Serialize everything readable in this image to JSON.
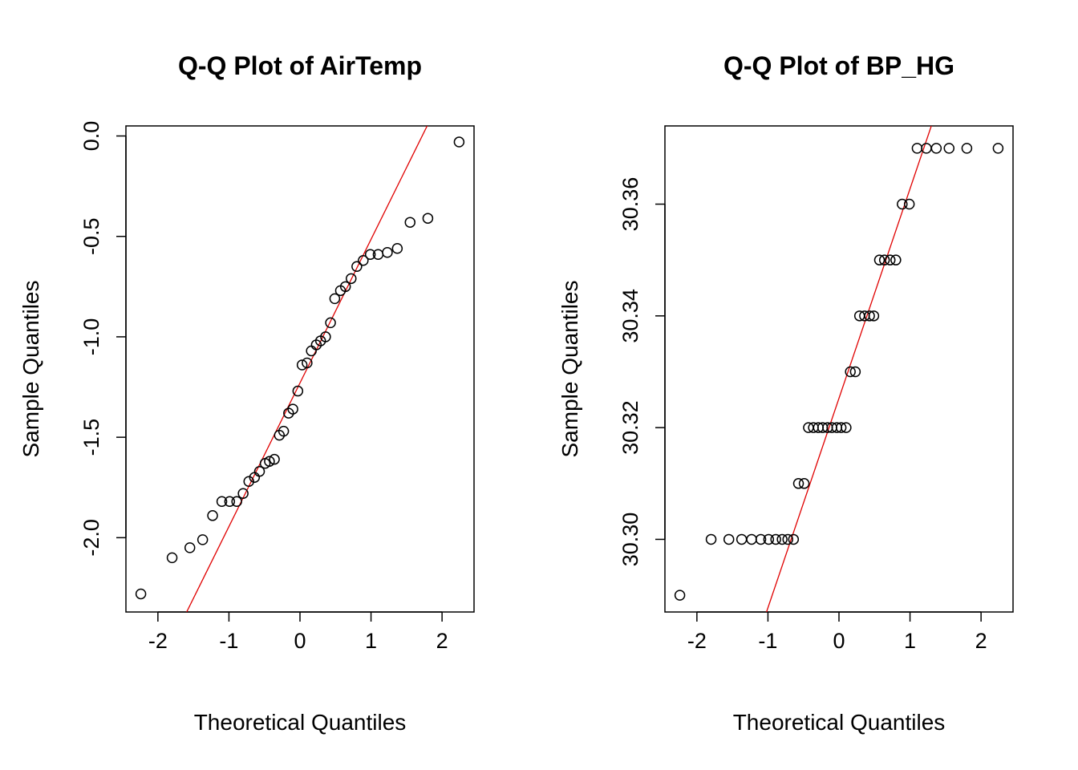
{
  "chart_data": [
    {
      "type": "scatter",
      "title": "Q-Q Plot of AirTemp",
      "xlabel": "Theoretical Quantiles",
      "ylabel": "Sample Quantiles",
      "xlim": [
        -2.45,
        2.45
      ],
      "ylim": [
        -2.37,
        0.05
      ],
      "xticks": [
        -2,
        -1,
        0,
        1,
        2
      ],
      "xtick_labels": [
        "-2",
        "-1",
        "0",
        "1",
        "2"
      ],
      "yticks": [
        -2.0,
        -1.5,
        -1.0,
        -0.5,
        0.0
      ],
      "ytick_labels": [
        "-2.0",
        "-1.5",
        "-1.0",
        "-0.5",
        "0.0"
      ],
      "grid": false,
      "reference_line": {
        "color": "#e00000",
        "points": [
          [
            -1.595,
            -2.37
          ],
          [
            1.79,
            0.05
          ]
        ]
      },
      "series": [
        {
          "marker": "open-circle",
          "x": [
            -2.24,
            -1.8,
            -1.55,
            -1.37,
            -1.23,
            -1.1,
            -0.99,
            -0.89,
            -0.8,
            -0.72,
            -0.64,
            -0.57,
            -0.49,
            -0.43,
            -0.36,
            -0.29,
            -0.23,
            -0.16,
            -0.1,
            -0.03,
            0.03,
            0.1,
            0.16,
            0.23,
            0.29,
            0.36,
            0.43,
            0.49,
            0.57,
            0.64,
            0.72,
            0.8,
            0.89,
            0.99,
            1.1,
            1.23,
            1.37,
            1.55,
            1.8,
            2.24
          ],
          "y": [
            -2.28,
            -2.1,
            -2.05,
            -2.01,
            -1.89,
            -1.82,
            -1.82,
            -1.82,
            -1.78,
            -1.72,
            -1.7,
            -1.67,
            -1.63,
            -1.62,
            -1.61,
            -1.49,
            -1.47,
            -1.38,
            -1.36,
            -1.27,
            -1.14,
            -1.13,
            -1.07,
            -1.04,
            -1.02,
            -1.0,
            -0.93,
            -0.81,
            -0.77,
            -0.75,
            -0.71,
            -0.65,
            -0.62,
            -0.59,
            -0.59,
            -0.58,
            -0.56,
            -0.43,
            -0.41,
            -0.03
          ]
        }
      ]
    },
    {
      "type": "scatter",
      "title": "Q-Q Plot of BP_HG",
      "xlabel": "Theoretical Quantiles",
      "ylabel": "Sample Quantiles",
      "xlim": [
        -2.45,
        2.45
      ],
      "ylim": [
        30.287,
        30.374
      ],
      "xticks": [
        -2,
        -1,
        0,
        1,
        2
      ],
      "xtick_labels": [
        "-2",
        "-1",
        "0",
        "1",
        "2"
      ],
      "yticks": [
        30.3,
        30.32,
        30.34,
        30.36
      ],
      "ytick_labels": [
        "30.30",
        "30.32",
        "30.34",
        "30.36"
      ],
      "grid": false,
      "reference_line": {
        "color": "#e00000",
        "points": [
          [
            -1.02,
            30.287
          ],
          [
            1.3,
            30.374
          ]
        ]
      },
      "series": [
        {
          "marker": "open-circle",
          "x": [
            -2.24,
            -1.8,
            -1.55,
            -1.37,
            -1.23,
            -1.1,
            -0.99,
            -0.89,
            -0.8,
            -0.72,
            -0.64,
            -0.57,
            -0.49,
            -0.43,
            -0.36,
            -0.29,
            -0.23,
            -0.16,
            -0.1,
            -0.03,
            0.03,
            0.1,
            0.16,
            0.23,
            0.29,
            0.36,
            0.43,
            0.49,
            0.57,
            0.64,
            0.72,
            0.8,
            0.89,
            0.99,
            1.1,
            1.23,
            1.37,
            1.55,
            1.8,
            2.24
          ],
          "y": [
            30.29,
            30.3,
            30.3,
            30.3,
            30.3,
            30.3,
            30.3,
            30.3,
            30.3,
            30.3,
            30.3,
            30.31,
            30.31,
            30.32,
            30.32,
            30.32,
            30.32,
            30.32,
            30.32,
            30.32,
            30.32,
            30.32,
            30.33,
            30.33,
            30.34,
            30.34,
            30.34,
            30.34,
            30.35,
            30.35,
            30.35,
            30.35,
            30.36,
            30.36,
            30.37,
            30.37,
            30.37,
            30.37,
            30.37,
            30.37
          ]
        }
      ]
    }
  ]
}
